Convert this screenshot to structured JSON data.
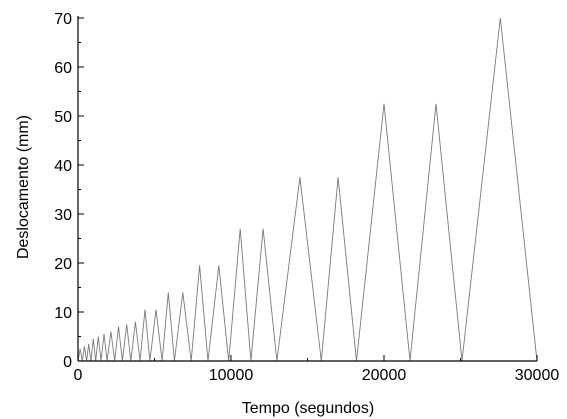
{
  "chart_data": {
    "type": "line",
    "title": "",
    "xlabel": "Tempo (segundos)",
    "ylabel": "Deslocamento (mm)",
    "xlim": [
      0,
      30000
    ],
    "ylim": [
      0,
      70
    ],
    "xticks": [
      0,
      10000,
      20000,
      30000
    ],
    "yticks": [
      0,
      10,
      20,
      30,
      40,
      50,
      60,
      70
    ],
    "grid": false,
    "legend": "none",
    "series": [
      {
        "x": [
          0,
          140,
          280,
          420,
          560,
          700,
          840,
          1000,
          1160,
          1330,
          1500,
          1700,
          1900,
          2150,
          2400,
          2650,
          2900,
          3180,
          3450,
          3750,
          4050,
          4380,
          4700,
          5100,
          5500,
          5900,
          6300,
          6850,
          7400,
          7950,
          8500,
          9200,
          9850,
          10600,
          11300,
          12100,
          13000,
          14500,
          15900,
          17000,
          18200,
          20000,
          21700,
          23400,
          25100,
          27600,
          30000
        ],
        "y": [
          0,
          2.5,
          0,
          3,
          0,
          3.5,
          0,
          4.5,
          0,
          5,
          0,
          5.5,
          0,
          6,
          0,
          7,
          0,
          7.5,
          0,
          8,
          0,
          10.5,
          0,
          10.5,
          0,
          14,
          0,
          14,
          0,
          19.5,
          0,
          19.5,
          0,
          27,
          0,
          27,
          0,
          37.5,
          0,
          37.5,
          0,
          52.5,
          0,
          52.5,
          0,
          70,
          0
        ]
      }
    ]
  },
  "style": {
    "line_color": "#7a7a7a",
    "axis_color": "#000000"
  }
}
